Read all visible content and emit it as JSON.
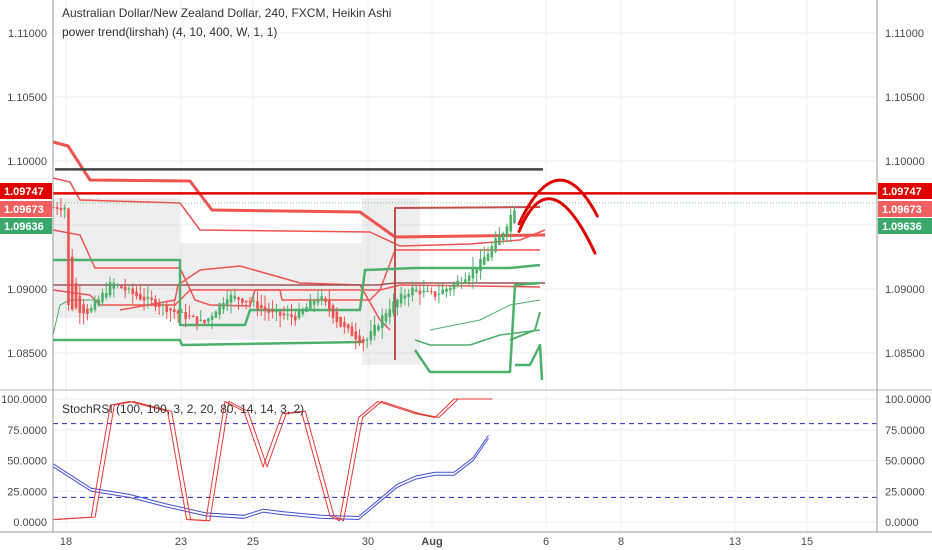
{
  "header": {
    "title": "Australian Dollar/New Zealand Dollar, 240, FXCM, Heikin Ashi",
    "indicator": "power trend(lirshah) (4, 10, 400, W, 1, 1)"
  },
  "oscillator": {
    "label": "StochRSI (100, 100, 3, 2, 20, 80, 14, 14, 3, 2)"
  },
  "colors": {
    "bull": "#4caf6a",
    "bear": "#ef5350",
    "resistance": "#e00000",
    "dark_line": "#444444",
    "stoch_k": "#3f51d4",
    "stoch_d": "#e53935",
    "band_dash": "#2828c8"
  },
  "price_axis": {
    "ticks": [
      "1.11000",
      "1.10500",
      "1.10000",
      "1.09000",
      "1.08500"
    ],
    "badges": [
      {
        "label": "1.09747",
        "color": "#e00000"
      },
      {
        "label": "1.09673",
        "color": "#f06060"
      },
      {
        "label": "1.09636",
        "color": "#3aa86a"
      }
    ]
  },
  "osc_axis": {
    "ticks": [
      "100.0000",
      "75.0000",
      "50.0000",
      "25.0000",
      "0.0000"
    ]
  },
  "x_axis": {
    "labels": [
      "18",
      "23",
      "25",
      "30",
      "Aug",
      "6",
      "8",
      "13",
      "15"
    ]
  },
  "chart_data": {
    "type": "candlestick",
    "title": "Australian Dollar/New Zealand Dollar, 240, FXCM, Heikin Ashi",
    "ylim": [
      1.0805,
      1.1135
    ],
    "resistance_level": 1.09747,
    "upper_black_line": 1.09935,
    "last_close": 1.09636,
    "close_path": [
      [
        18,
        1.0887
      ],
      [
        19,
        1.0882
      ],
      [
        20,
        1.0905
      ],
      [
        21,
        1.0895
      ],
      [
        22,
        1.0888
      ],
      [
        23,
        1.088
      ],
      [
        24,
        1.0873
      ],
      [
        25,
        1.0895
      ],
      [
        26,
        1.089
      ],
      [
        27,
        1.088
      ],
      [
        28,
        1.0878
      ],
      [
        29,
        1.0895
      ],
      [
        30,
        1.087
      ],
      [
        31,
        1.0858
      ],
      [
        32,
        1.0885
      ],
      [
        33,
        1.09
      ],
      [
        34,
        1.0895
      ],
      [
        35,
        1.0905
      ],
      [
        36,
        1.092
      ],
      [
        37,
        1.0945
      ],
      [
        37.5,
        1.0964
      ]
    ],
    "projection": [
      {
        "type": "arc",
        "points": [
          [
            37.7,
            1.0951
          ],
          [
            39.4,
            1.0985
          ],
          [
            41.1,
            1.0957
          ]
        ]
      },
      {
        "type": "arc",
        "points": [
          [
            37.7,
            1.0945
          ],
          [
            39.2,
            1.097
          ],
          [
            41.0,
            1.0928
          ]
        ]
      }
    ],
    "stochrsi": {
      "levels": [
        20,
        80
      ],
      "ylim": [
        0,
        100
      ],
      "k": [
        [
          15,
          45
        ],
        [
          17,
          25
        ],
        [
          19,
          20
        ],
        [
          21,
          12
        ],
        [
          23,
          5
        ],
        [
          25,
          3
        ],
        [
          26,
          8
        ],
        [
          27,
          6
        ],
        [
          29,
          3
        ],
        [
          31,
          2
        ],
        [
          33,
          28
        ],
        [
          34,
          35
        ],
        [
          35,
          38
        ],
        [
          36,
          38
        ],
        [
          37,
          50
        ],
        [
          37.8,
          68
        ]
      ],
      "d": [
        [
          15,
          2
        ],
        [
          17,
          4
        ],
        [
          18,
          95
        ],
        [
          19,
          98
        ],
        [
          21,
          90
        ],
        [
          22,
          2
        ],
        [
          23,
          1
        ],
        [
          24,
          98
        ],
        [
          25,
          90
        ],
        [
          26,
          45
        ],
        [
          27,
          88
        ],
        [
          28,
          90
        ],
        [
          29.5,
          5
        ],
        [
          30,
          1
        ],
        [
          31,
          85
        ],
        [
          32,
          98
        ],
        [
          34,
          88
        ],
        [
          35,
          85
        ],
        [
          36,
          100
        ],
        [
          37.8,
          100
        ]
      ]
    }
  }
}
